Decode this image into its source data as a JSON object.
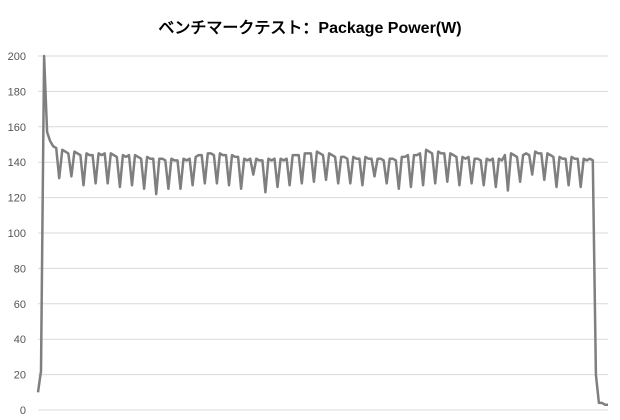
{
  "chart_data": {
    "type": "line",
    "title": "ベンチマークテスト：Package Power(W)",
    "xlabel": "",
    "ylabel": "",
    "ylim": [
      0,
      200
    ],
    "yticks": [
      0,
      20,
      40,
      60,
      80,
      100,
      120,
      140,
      160,
      180,
      200
    ],
    "grid": true,
    "legend": "none",
    "colors": {
      "line": "#7f7f7f",
      "grid": "#d9d9d9",
      "tick_text": "#595959"
    },
    "series": [
      {
        "values": [
          10,
          22,
          215,
          157,
          152,
          149,
          148,
          131,
          147,
          146,
          145,
          132,
          146,
          145,
          144,
          127,
          145,
          144,
          144,
          128,
          145,
          144,
          145,
          128,
          145,
          144,
          143,
          126,
          144,
          143,
          144,
          127,
          144,
          143,
          142,
          125,
          143,
          142,
          142,
          122,
          142,
          142,
          141,
          125,
          142,
          141,
          141,
          125,
          142,
          141,
          142,
          127,
          143,
          144,
          144,
          128,
          145,
          145,
          144,
          128,
          145,
          144,
          144,
          127,
          144,
          143,
          143,
          125,
          142,
          141,
          142,
          133,
          142,
          141,
          141,
          123,
          142,
          141,
          142,
          126,
          142,
          141,
          142,
          127,
          144,
          144,
          144,
          128,
          145,
          145,
          145,
          129,
          146,
          145,
          144,
          130,
          145,
          144,
          143,
          128,
          143,
          143,
          142,
          128,
          143,
          142,
          142,
          127,
          143,
          142,
          142,
          132,
          142,
          142,
          141,
          128,
          142,
          142,
          141,
          125,
          143,
          143,
          144,
          126,
          144,
          144,
          145,
          127,
          147,
          146,
          145,
          128,
          146,
          145,
          145,
          129,
          145,
          144,
          143,
          127,
          143,
          142,
          143,
          128,
          142,
          142,
          141,
          127,
          142,
          141,
          142,
          126,
          142,
          141,
          144,
          124,
          145,
          144,
          143,
          129,
          144,
          145,
          144,
          133,
          146,
          145,
          145,
          130,
          145,
          144,
          143,
          126,
          143,
          142,
          142,
          127,
          143,
          142,
          142,
          126,
          142,
          141,
          142,
          141,
          20,
          4,
          4,
          3,
          3
        ]
      }
    ]
  }
}
